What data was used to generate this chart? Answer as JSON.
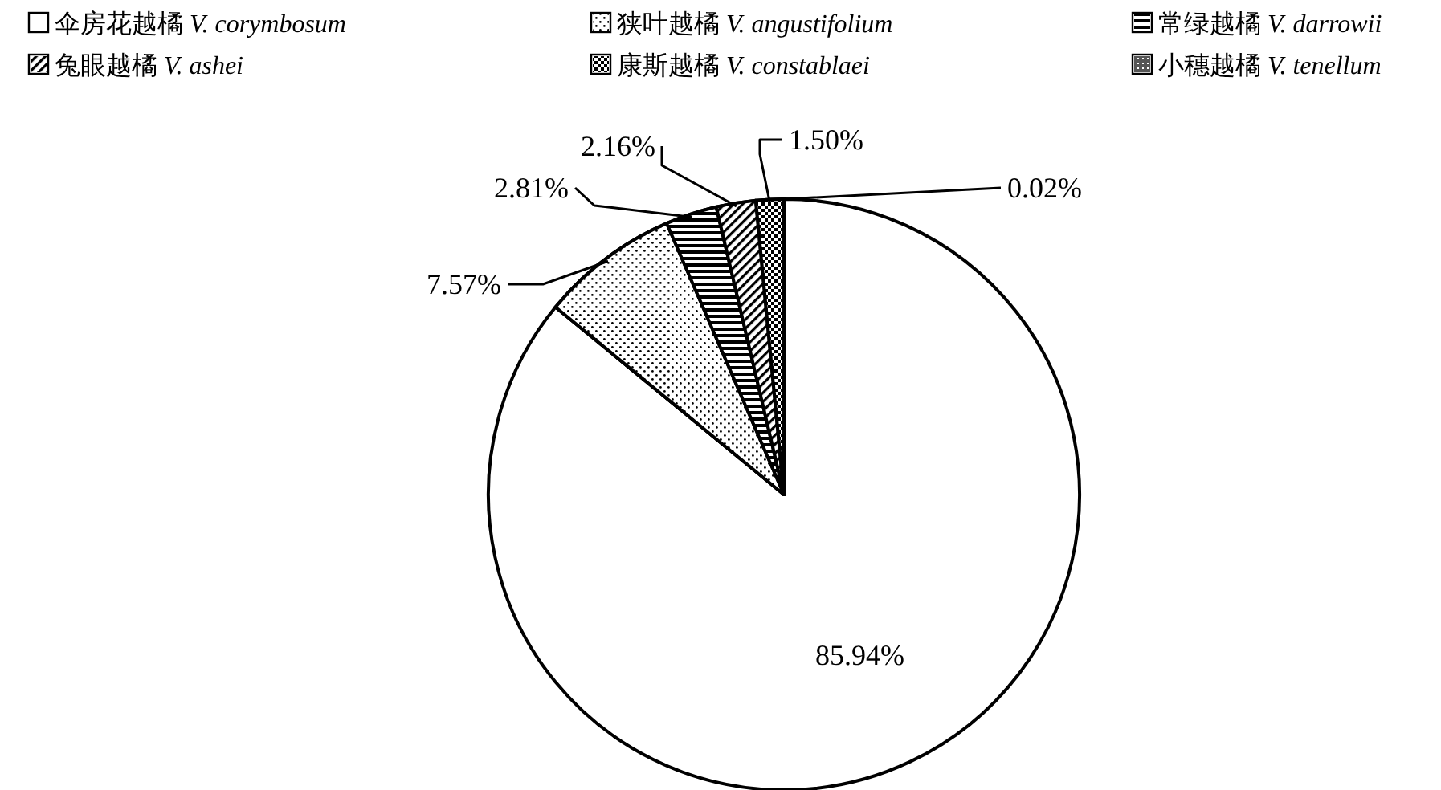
{
  "chart_data": {
    "type": "pie",
    "categories": [
      "伞房花越橘 V. corymbosum",
      "狭叶越橘 V. angustifolium",
      "常绿越橘  V. darrowii",
      "兔眼越橘 V. ashei",
      "康斯越橘 V. constablaei",
      "小穗越橘 V. tenellum"
    ],
    "values": [
      85.94,
      7.57,
      2.81,
      2.16,
      1.5,
      0.02
    ],
    "colors": [
      "#ffffff",
      "#ffffff",
      "#ffffff",
      "#ffffff",
      "#ffffff",
      "#ffffff"
    ],
    "value_labels": [
      "85.94%",
      "7.57%",
      "2.81%",
      "2.16%",
      "1.50%",
      "0.02%"
    ],
    "legend": "top"
  }
}
